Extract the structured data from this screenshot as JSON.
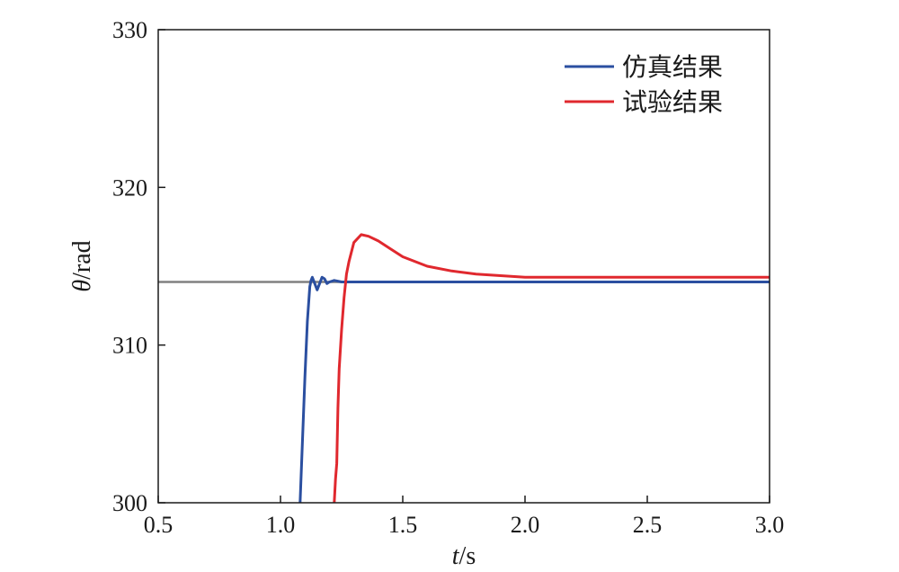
{
  "chart_data": {
    "type": "line",
    "title": "",
    "xlabel": {
      "var": "t",
      "unit": "/s"
    },
    "ylabel": {
      "var": "θ",
      "unit": "/rad"
    },
    "xlim": [
      0.5,
      3.0
    ],
    "ylim": [
      300,
      330
    ],
    "xticks": [
      "0.5",
      "1.0",
      "1.5",
      "2.0",
      "2.5",
      "3.0"
    ],
    "xtick_values": [
      0.5,
      1.0,
      1.5,
      2.0,
      2.5,
      3.0
    ],
    "yticks": [
      "300",
      "310",
      "320",
      "330"
    ],
    "ytick_values": [
      300,
      310,
      320,
      330
    ],
    "grid": false,
    "legend_position": "top-right",
    "reference_line": {
      "y": 314.0,
      "color": "#808080"
    },
    "series": [
      {
        "name": "仿真结果",
        "color": "#2b4fa0",
        "x": [
          1.08,
          1.09,
          1.1,
          1.11,
          1.12,
          1.125,
          1.13,
          1.14,
          1.15,
          1.16,
          1.17,
          1.18,
          1.19,
          1.2,
          1.22,
          1.25,
          1.3,
          1.5,
          2.0,
          2.5,
          3.0
        ],
        "y": [
          300.0,
          304.0,
          308.0,
          311.5,
          313.7,
          314.1,
          314.3,
          313.9,
          313.5,
          313.9,
          314.3,
          314.2,
          313.9,
          314.0,
          314.1,
          314.0,
          314.0,
          314.0,
          314.0,
          314.0,
          314.0
        ]
      },
      {
        "name": "试验结果",
        "color": "#e0282e",
        "x": [
          1.22,
          1.225,
          1.23,
          1.235,
          1.24,
          1.25,
          1.26,
          1.27,
          1.28,
          1.3,
          1.33,
          1.36,
          1.4,
          1.45,
          1.5,
          1.6,
          1.7,
          1.8,
          1.9,
          2.0,
          2.2,
          2.5,
          3.0
        ],
        "y": [
          300.0,
          301.5,
          302.5,
          306.0,
          308.5,
          311.0,
          313.0,
          314.5,
          315.3,
          316.5,
          317.0,
          316.9,
          316.6,
          316.1,
          315.6,
          315.0,
          314.7,
          314.5,
          314.4,
          314.3,
          314.3,
          314.3,
          314.3
        ]
      }
    ]
  }
}
